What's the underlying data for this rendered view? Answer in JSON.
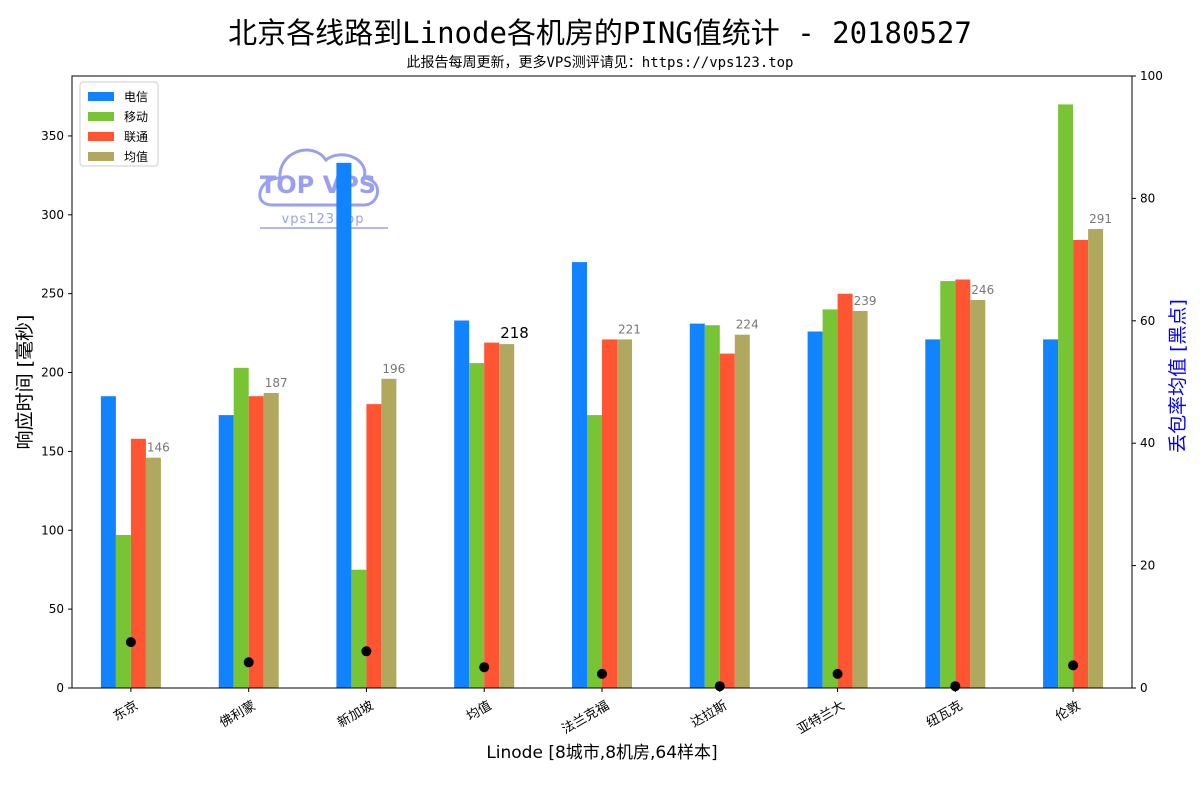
{
  "title": "北京各线路到Linode各机房的PING值统计 - 20180527",
  "subtitle": "此报告每周更新，更多VPS测评请见：https://vps123.top",
  "watermark": {
    "brand": "TOP VPS",
    "at": "@",
    "site": "vps123.top"
  },
  "colors": {
    "telecom": "#1283ff",
    "mobile": "#77c535",
    "unicom": "#ff5533",
    "average": "#b0a85e",
    "loss_marker": "#000000",
    "right_axis_label": "#0000ff",
    "watermark": "#9aa0f0"
  },
  "chart_data": {
    "type": "bar",
    "xlabel": "Linode [8城市,8机房,64样本]",
    "ylabel": "响应时间 [毫秒]",
    "ylabel_right": "丢包率均值 [黑点]",
    "ylim": [
      0,
      388
    ],
    "ylim_right": [
      0,
      100
    ],
    "yticks": [
      "0",
      "50",
      "100",
      "150",
      "200",
      "250",
      "300",
      "350"
    ],
    "yticks_right": [
      "0",
      "20",
      "40",
      "60",
      "80",
      "100"
    ],
    "legend_position": "top-left",
    "categories": [
      "东京",
      "佛利蒙",
      "新加坡",
      "均值",
      "法兰克福",
      "达拉斯",
      "亚特兰大",
      "纽瓦克",
      "伦敦"
    ],
    "series": [
      {
        "name": "电信",
        "key": "telecom",
        "values": [
          185,
          173,
          333,
          233,
          270,
          231,
          226,
          221,
          221
        ]
      },
      {
        "name": "移动",
        "key": "mobile",
        "values": [
          97,
          203,
          75,
          206,
          173,
          230,
          240,
          258,
          370
        ]
      },
      {
        "name": "联通",
        "key": "unicom",
        "values": [
          158,
          185,
          180,
          219,
          221,
          212,
          250,
          259,
          284
        ]
      },
      {
        "name": "均值",
        "key": "average",
        "values": [
          146,
          187,
          196,
          218,
          221,
          224,
          239,
          246,
          291
        ]
      }
    ],
    "average_labels": [
      "146",
      "187",
      "196",
      "218",
      "221",
      "224",
      "239",
      "246",
      "291"
    ],
    "packet_loss": [
      7.5,
      4.2,
      6.0,
      3.4,
      2.3,
      0.3,
      2.3,
      0.3,
      3.7
    ]
  }
}
